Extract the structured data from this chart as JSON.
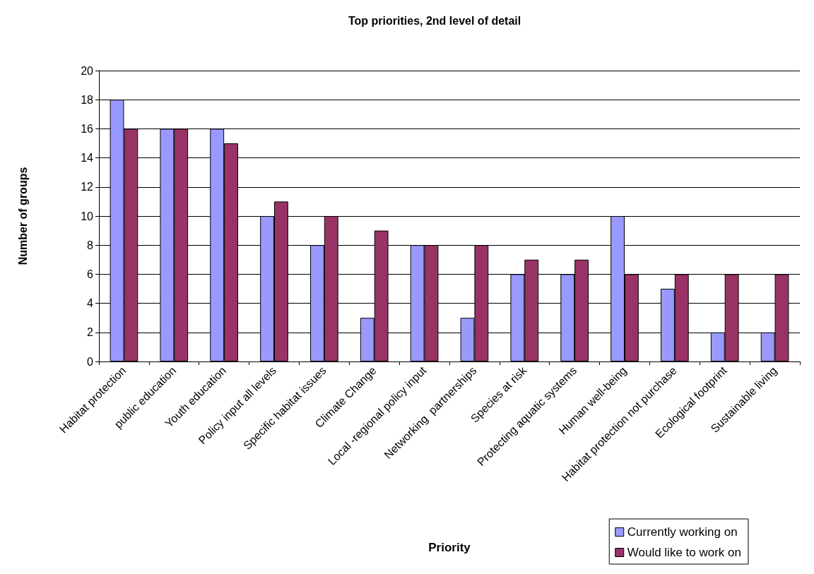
{
  "chart_data": {
    "type": "bar",
    "title": "Top priorities, 2nd level of detail",
    "xlabel": "Priority",
    "ylabel": "Number of groups",
    "categories": [
      "Habitat protection",
      "public education",
      "Youth education",
      "Policy input all levels",
      "Specific habitat issues",
      "Climate Change",
      "Local -regional policy input",
      "Networking  partnerships",
      "Species at risk",
      "Protecting aquatic systems",
      "Human well-being",
      "Habitat protection not purchase",
      "Ecological footprint",
      "Sustainable living"
    ],
    "series": [
      {
        "name": "Currently working on",
        "color": "#9999ff",
        "values": [
          18,
          16,
          16,
          10,
          8,
          3,
          8,
          3,
          6,
          6,
          10,
          5,
          2,
          2
        ]
      },
      {
        "name": "Would like to work on",
        "color": "#993366",
        "values": [
          16,
          16,
          15,
          11,
          10,
          9,
          8,
          8,
          7,
          7,
          6,
          6,
          6,
          6
        ]
      }
    ],
    "ylim": [
      0,
      20
    ],
    "yticks": [
      0,
      2,
      4,
      6,
      8,
      10,
      12,
      14,
      16,
      18,
      20
    ],
    "grid": "y",
    "legend": "bottom right"
  }
}
